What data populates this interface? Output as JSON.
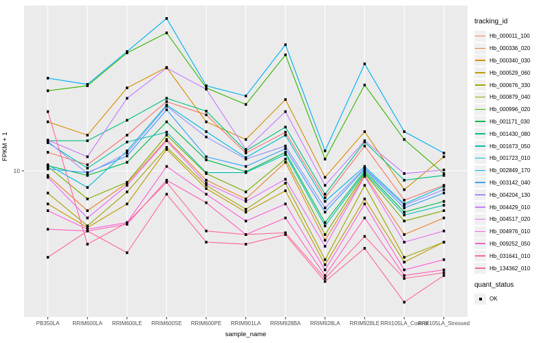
{
  "chart_data": {
    "type": "line",
    "title": "",
    "xlabel": "sample_name",
    "ylabel": "FPKM + 1",
    "y_scale": "log10",
    "y_ticks": [
      10
    ],
    "y_tick_labels": [
      "10"
    ],
    "grid": "major-only",
    "panel_bg": "#EBEBEB",
    "grid_color": "#FFFFFF",
    "point_shape": "filled-square",
    "point_color": "#000000",
    "categories": [
      "PB350LA",
      "RRIM600LA",
      "RRIM600LE",
      "RRIM600SE",
      "RRIM600PE",
      "RRIM901LA",
      "RRIM928BA",
      "RRIM928LA",
      "RRIM928LE",
      "RRII105LA_Control",
      "RRII105LA_Stressed"
    ],
    "legend": {
      "title": "tracking_id",
      "position": "right"
    },
    "quant_status": {
      "title": "quant_status",
      "items": [
        {
          "label": "OK",
          "shape": "black-square"
        }
      ]
    },
    "series": [
      {
        "name": "Hb_000011_100",
        "color": "#F8766D",
        "values": [
          12.3,
          10.7,
          14.9,
          21.7,
          18.7,
          12.2,
          15.4,
          7.4,
          13.2,
          7.2,
          8.5
        ]
      },
      {
        "name": "Hb_000336_020",
        "color": "#EA8331",
        "values": [
          9.5,
          6.4,
          8.7,
          14.2,
          9.0,
          7.3,
          11.0,
          4.6,
          9.5,
          4.9,
          5.9
        ]
      },
      {
        "name": "Hb_000340_030",
        "color": "#D89000",
        "values": [
          17.3,
          14.9,
          25.3,
          31.8,
          17.3,
          14.2,
          22.2,
          9.3,
          15.5,
          8.1,
          11.7
        ]
      },
      {
        "name": "Hb_000529_060",
        "color": "#C09B00",
        "values": [
          6.9,
          5.3,
          6.9,
          12.7,
          8.2,
          6.3,
          8.0,
          3.5,
          7.3,
          3.6,
          4.5
        ]
      },
      {
        "name": "Hb_000676_330",
        "color": "#A3A500",
        "values": [
          7.8,
          5.4,
          7.9,
          13.0,
          8.5,
          6.5,
          8.7,
          3.7,
          8.5,
          3.8,
          4.5
        ]
      },
      {
        "name": "Hb_000879_040",
        "color": "#7CAE00",
        "values": [
          10.5,
          7.3,
          8.8,
          14.9,
          9.7,
          7.9,
          11.4,
          4.9,
          9.7,
          5.7,
          6.4
        ]
      },
      {
        "name": "Hb_000996_020",
        "color": "#39B600",
        "values": [
          24.5,
          25.9,
          37.4,
          46.8,
          25.3,
          21.0,
          36.6,
          11.4,
          26.1,
          14.2,
          9.7
        ]
      },
      {
        "name": "Hb_001171_030",
        "color": "#00BB4E",
        "values": [
          10.6,
          9.5,
          11.0,
          17.3,
          11.3,
          9.9,
          12.3,
          5.6,
          10.0,
          6.3,
          7.1
        ]
      },
      {
        "name": "Hb_001430_080",
        "color": "#00C087",
        "values": [
          14.0,
          14.0,
          17.6,
          22.5,
          19.5,
          12.5,
          16.3,
          7.7,
          13.8,
          9.0,
          9.5
        ]
      },
      {
        "name": "Hb_001673_050",
        "color": "#00C0AF",
        "values": [
          13.7,
          10.3,
          13.8,
          15.4,
          9.8,
          9.8,
          12.0,
          5.4,
          9.8,
          6.1,
          6.8
        ]
      },
      {
        "name": "Hb_001723_010",
        "color": "#00BCD8",
        "values": [
          10.7,
          8.3,
          12.5,
          20.9,
          15.5,
          11.6,
          14.9,
          7.1,
          10.5,
          6.9,
          8.4
        ]
      },
      {
        "name": "Hb_002849_170",
        "color": "#00B0F6",
        "values": [
          28.2,
          26.3,
          38.0,
          55.0,
          25.9,
          23.1,
          41.0,
          12.5,
          33.1,
          15.5,
          12.2
        ]
      },
      {
        "name": "Hb_003142_040",
        "color": "#35A2FF",
        "values": [
          10.2,
          9.8,
          11.8,
          19.8,
          11.7,
          10.5,
          12.8,
          6.3,
          10.2,
          6.6,
          7.8
        ]
      },
      {
        "name": "Hb_004204_130",
        "color": "#9590FF",
        "values": [
          13.9,
          9.7,
          12.2,
          20.6,
          14.6,
          11.4,
          13.2,
          6.6,
          10.3,
          6.8,
          8.1
        ]
      },
      {
        "name": "Hb_004429_010",
        "color": "#C77CFF",
        "values": [
          14.1,
          11.7,
          22.5,
          31.6,
          24.9,
          12.7,
          19.4,
          8.5,
          14.0,
          9.7,
          10.1
        ]
      },
      {
        "name": "Hb_004517_020",
        "color": "#E76BF3",
        "values": [
          9.3,
          5.9,
          8.5,
          14.0,
          8.7,
          7.1,
          9.1,
          4.3,
          9.4,
          4.5,
          5.1
        ]
      },
      {
        "name": "Hb_004976_010",
        "color": "#FA62DB",
        "values": [
          6.4,
          5.2,
          5.6,
          10.5,
          7.7,
          5.7,
          6.9,
          3.3,
          6.9,
          3.3,
          3.7
        ]
      },
      {
        "name": "Hb_009252_050",
        "color": "#FF62BC",
        "values": [
          5.2,
          5.1,
          5.5,
          9.0,
          7.0,
          4.9,
          5.9,
          3.1,
          5.9,
          3.1,
          3.3
        ]
      },
      {
        "name": "Hb_031641_010",
        "color": "#FF6A98",
        "values": [
          19.4,
          4.4,
          5.6,
          8.8,
          5.1,
          4.9,
          5.0,
          3.0,
          4.8,
          3.0,
          3.2
        ]
      },
      {
        "name": "Hb_134362_010",
        "color": "#FF689E",
        "values": [
          3.8,
          5.1,
          4.0,
          7.7,
          4.5,
          4.4,
          4.9,
          2.9,
          4.2,
          2.3,
          3.1
        ]
      }
    ]
  }
}
